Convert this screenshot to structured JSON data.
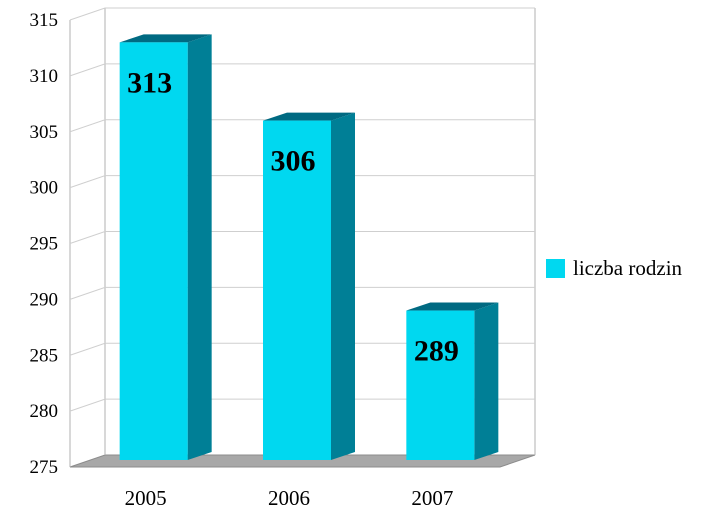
{
  "chart_data": {
    "type": "bar",
    "title": "",
    "xlabel": "",
    "ylabel": "",
    "categories": [
      "2005",
      "2006",
      "2007"
    ],
    "series": [
      {
        "name": "liczba rodzin",
        "values": [
          313,
          306,
          289
        ]
      }
    ],
    "data_labels": [
      "313",
      "306",
      "289"
    ],
    "ylim": [
      275,
      315
    ],
    "yticks": [
      275,
      280,
      285,
      290,
      295,
      300,
      305,
      310,
      315
    ],
    "grid": true,
    "legend": "right",
    "style": "3d",
    "colors": {
      "bar_front": "#00d8f0",
      "bar_side": "#007f96",
      "bar_top": "#006a82",
      "floor": "#a8a8a8",
      "grid": "#cfcfcf",
      "frame": "#b0b0b0"
    }
  }
}
